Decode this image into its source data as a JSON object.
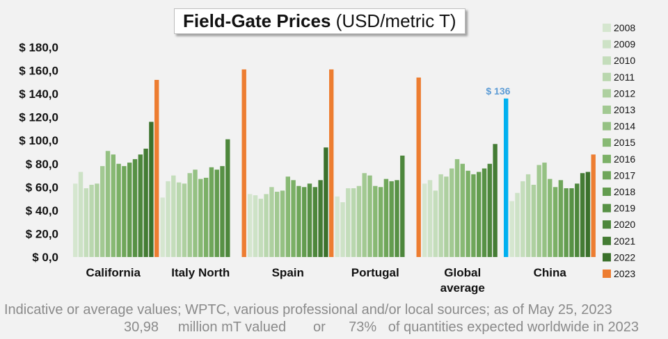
{
  "chart_data": {
    "type": "bar",
    "title_bold": "Field-Gate Prices",
    "title_rest": "(USD/metric T)",
    "ylim": [
      0,
      180
    ],
    "y_tick_labels": [
      "$ 0,0",
      "$ 20,0",
      "$ 40,0",
      "$ 60,0",
      "$ 80,0",
      "$ 100,0",
      "$ 120,0",
      "$ 140,0",
      "$ 160,0",
      "$ 180,0"
    ],
    "grid": false,
    "legend_position": "right",
    "categories": [
      "California",
      "Italy North",
      "Spain",
      "Portugal",
      "Global\naverage",
      "China"
    ],
    "series": [
      {
        "name": "2008",
        "color": "#d5e6cf",
        "values": [
          63,
          51,
          54,
          52,
          63,
          48
        ]
      },
      {
        "name": "2009",
        "color": "#cde2c6",
        "values": [
          73,
          65,
          53,
          47,
          66,
          55
        ]
      },
      {
        "name": "2010",
        "color": "#c4ddbb",
        "values": [
          59,
          70,
          50,
          59,
          57,
          65
        ]
      },
      {
        "name": "2011",
        "color": "#b9d7ae",
        "values": [
          62,
          64,
          54,
          59,
          71,
          71
        ]
      },
      {
        "name": "2012",
        "color": "#aed0a0",
        "values": [
          63,
          63,
          60,
          61,
          69,
          62
        ]
      },
      {
        "name": "2013",
        "color": "#a2c992",
        "values": [
          78,
          72,
          56,
          72,
          76,
          79
        ]
      },
      {
        "name": "2014",
        "color": "#95c183",
        "values": [
          91,
          75,
          57,
          70,
          84,
          81
        ]
      },
      {
        "name": "2015",
        "color": "#88b974",
        "values": [
          88,
          67,
          69,
          61,
          80,
          67
        ]
      },
      {
        "name": "2016",
        "color": "#7bb066",
        "values": [
          80,
          68,
          66,
          60,
          74,
          60
        ]
      },
      {
        "name": "2017",
        "color": "#6fa65a",
        "values": [
          78,
          77,
          61,
          67,
          71,
          66
        ]
      },
      {
        "name": "2018",
        "color": "#639c4f",
        "values": [
          81,
          75,
          60,
          65,
          73,
          59
        ]
      },
      {
        "name": "2019",
        "color": "#579145",
        "values": [
          84,
          78,
          63,
          66,
          76,
          59
        ]
      },
      {
        "name": "2020",
        "color": "#4d873c",
        "values": [
          88,
          101,
          60,
          87,
          80,
          63
        ]
      },
      {
        "name": "2021",
        "color": "#447c34",
        "values": [
          93,
          null,
          66,
          null,
          97,
          72
        ]
      },
      {
        "name": "2022",
        "color": "#3b712c",
        "values": [
          116,
          null,
          94,
          null,
          null,
          73
        ]
      },
      {
        "name": "2023",
        "color": "#ed7d31",
        "values": [
          152,
          161,
          161,
          154,
          136,
          88
        ]
      }
    ],
    "highlight": {
      "category_index": 4,
      "series": "2023",
      "color": "#00b0f0",
      "label": "$ 136",
      "label_color": "#5b9bd5"
    }
  },
  "footnote": {
    "line1": "Indicative or average values; WPTC, various professional and/or local sources; as of May 25, 2023",
    "line2": "30,98     million mT valued       or      73%   of quantities expected worldwide in 2023"
  }
}
